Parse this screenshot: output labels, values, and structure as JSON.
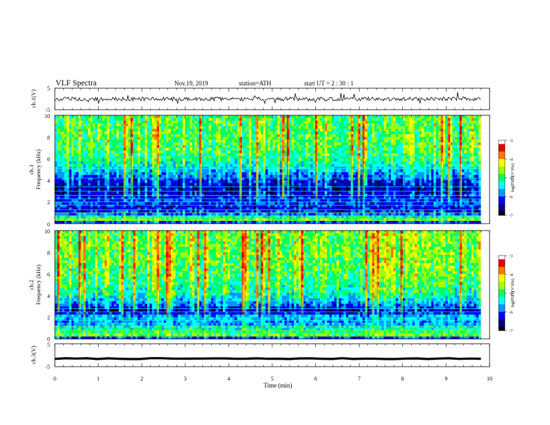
{
  "header": {
    "title": "VLF  Spectra",
    "date": "Nov.19, 2019",
    "station": "station=ATH",
    "start": "start  UT  =   2  : 30 : 1"
  },
  "colors": {
    "colormap": [
      "#000000",
      "#00007a",
      "#0000ff",
      "#0096ff",
      "#00ffff",
      "#00ff64",
      "#a0ff00",
      "#ffff00",
      "#ff7800",
      "#e60000",
      "#ffffff"
    ]
  },
  "chart_data": [
    {
      "type": "line",
      "id": "ch1-waveform",
      "ylabel": "ch.1(V)",
      "ylim": [
        -5,
        5
      ],
      "yticks": [
        "5",
        "-5"
      ],
      "xlim": [
        0,
        10
      ],
      "data_end": 9.8,
      "approx_center": 0,
      "approx_amplitude": 1.5,
      "color": "#000000"
    },
    {
      "type": "heatmap",
      "id": "ch1-spectrogram",
      "ylabel_top": "ch.1",
      "ylabel": "Frequency  (kHz)",
      "ylim": [
        0,
        10
      ],
      "yticks": [
        "0",
        "2",
        "4",
        "6",
        "8",
        "10"
      ],
      "xlim": [
        0,
        10
      ],
      "data_end": 9.8,
      "colorbar": {
        "label": "log(PSD)(V²/Hz)",
        "range": [
          -7,
          -3
        ],
        "ticks": [
          "-3",
          "-4",
          "-5",
          "-6",
          "-7"
        ]
      },
      "profile_khz_level": [
        [
          0,
          -7
        ],
        [
          0.3,
          -4.4
        ],
        [
          0.8,
          -5.8
        ],
        [
          1.4,
          -6.3
        ],
        [
          2.2,
          -6.0
        ],
        [
          3.0,
          -6.6
        ],
        [
          4.0,
          -6.2
        ],
        [
          5.0,
          -5.5
        ],
        [
          6.0,
          -5.0
        ],
        [
          7.0,
          -4.85
        ],
        [
          8.0,
          -4.8
        ],
        [
          9.0,
          -4.8
        ],
        [
          10.0,
          -4.9
        ]
      ],
      "lines_khz": [
        0.3,
        0.6,
        1.0,
        1.3,
        1.7,
        2.0,
        2.3,
        2.6,
        3.0,
        3.4,
        4.2,
        5.1,
        6.2
      ]
    },
    {
      "type": "heatmap",
      "id": "ch2-spectrogram",
      "ylabel_top": "ch.2",
      "ylabel": "Frequency  (kHz)",
      "ylim": [
        0,
        10
      ],
      "yticks": [
        "0",
        "2",
        "4",
        "6",
        "8",
        "10"
      ],
      "xlim": [
        0,
        10
      ],
      "data_end": 9.8,
      "colorbar": {
        "label": "log(PSD)(V²/Hz)",
        "range": [
          -7,
          -3
        ],
        "ticks": [
          "-3",
          "-4",
          "-5",
          "-6",
          "-7"
        ]
      },
      "profile_khz_level": [
        [
          0,
          -7
        ],
        [
          0.3,
          -4.6
        ],
        [
          0.9,
          -5.2
        ],
        [
          1.5,
          -5.8
        ],
        [
          2.0,
          -5.4
        ],
        [
          2.6,
          -6.6
        ],
        [
          3.2,
          -5.9
        ],
        [
          4.0,
          -5.3
        ],
        [
          5.0,
          -5.0
        ],
        [
          6.0,
          -4.85
        ],
        [
          7.0,
          -4.75
        ],
        [
          8.0,
          -4.7
        ],
        [
          9.0,
          -4.7
        ],
        [
          10.0,
          -4.75
        ]
      ],
      "lines_khz": [
        0.2,
        0.5,
        0.8,
        1.1,
        1.4,
        1.7,
        2.5,
        2.8,
        3.5,
        4.4,
        5.3
      ]
    },
    {
      "type": "line",
      "id": "ch3-waveform",
      "ylabel": "ch.3(V)",
      "ylim": [
        -5,
        5
      ],
      "yticks": [
        "5",
        "-5"
      ],
      "xlim": [
        0,
        10
      ],
      "data_end": 9.8,
      "approx_center": -1.5,
      "approx_amplitude": 0.2,
      "color": "#000000"
    }
  ],
  "xaxis": {
    "label": "Time  (min)",
    "ticks": [
      "0",
      "1",
      "2",
      "3",
      "4",
      "5",
      "6",
      "7",
      "8",
      "9",
      "10"
    ]
  }
}
